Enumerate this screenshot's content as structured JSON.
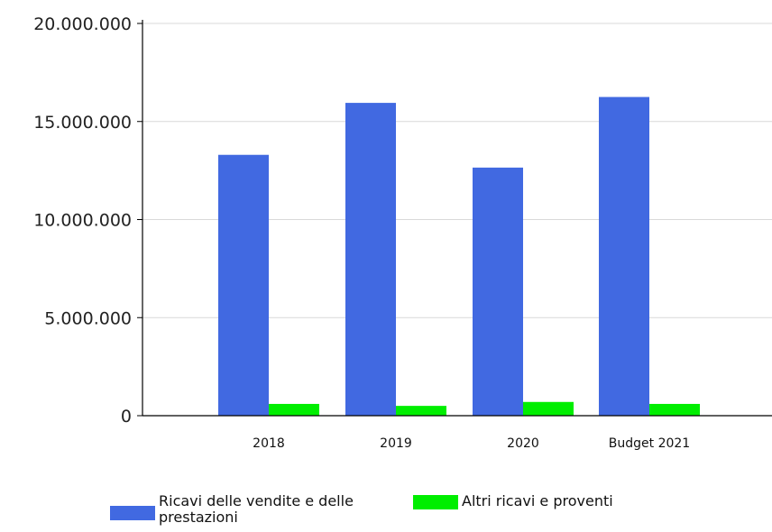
{
  "chart_data": {
    "type": "bar",
    "categories": [
      "2018",
      "2019",
      "2020",
      "Budget 2021"
    ],
    "series": [
      {
        "name": "Ricavi delle vendite e delle prestazioni",
        "color": "#4169e1",
        "values": [
          13300000,
          15950000,
          12650000,
          16250000
        ]
      },
      {
        "name": "Altri ricavi e proventi",
        "color": "#00ee00",
        "values": [
          600000,
          500000,
          700000,
          600000
        ]
      }
    ],
    "y_ticks": [
      "0",
      "5.000.000",
      "10.000.000",
      "15.000.000",
      "20.000.000"
    ],
    "y_tick_values": [
      0,
      5000000,
      10000000,
      15000000,
      20000000
    ],
    "ylim": [
      0,
      20000000
    ],
    "grid": true,
    "legend_position": "bottom"
  }
}
